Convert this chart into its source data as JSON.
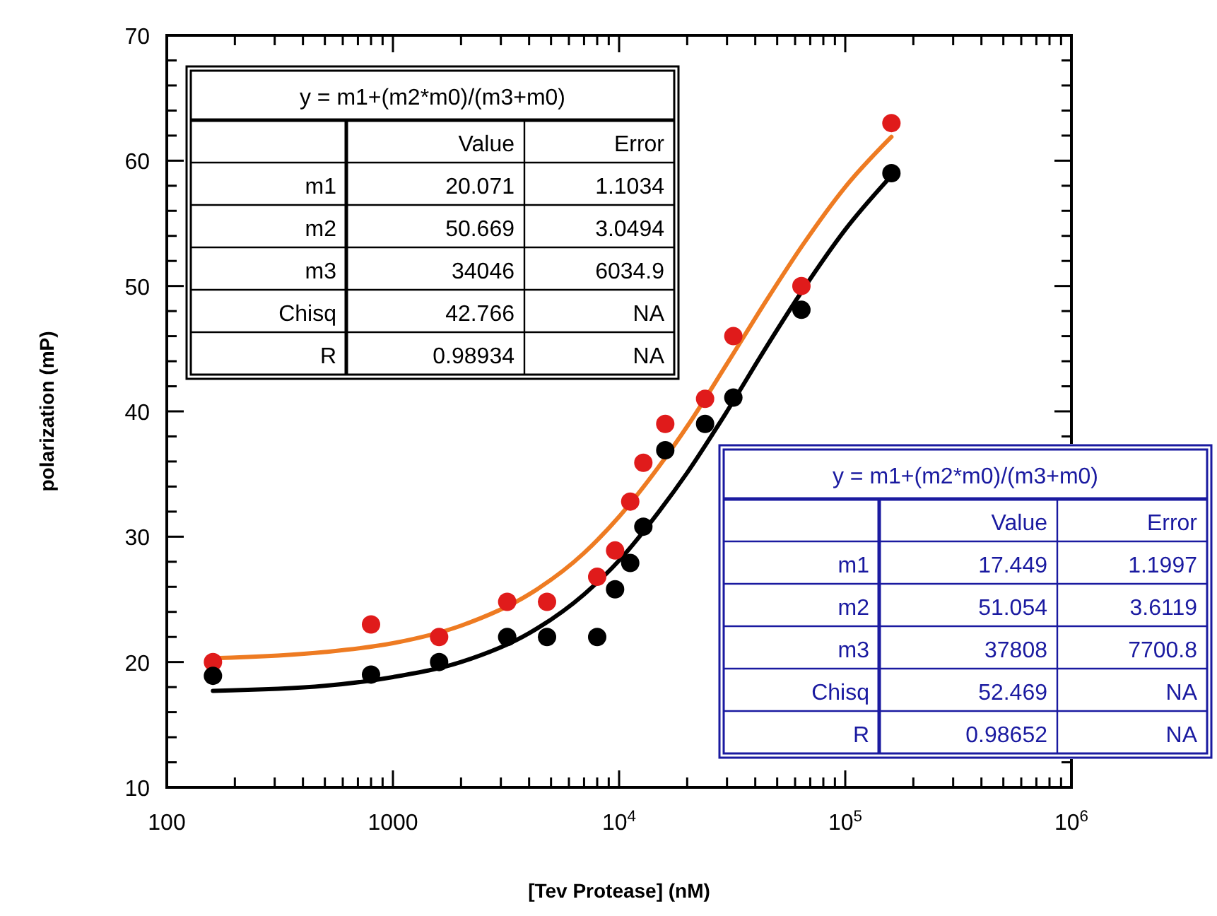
{
  "chart_data": {
    "type": "scatter",
    "xlabel": "[Tev Protease] (nM)",
    "ylabel": "polarization (mP)",
    "log": "x",
    "grid": false,
    "marker": "circle",
    "xlim": [
      100,
      1000000
    ],
    "xticks": [
      100,
      {
        "value": 200,
        "label": null
      },
      {
        "value": 300,
        "label": null
      },
      {
        "value": 400,
        "label": null
      },
      {
        "value": 500,
        "label": null
      },
      {
        "value": 600,
        "label": null
      },
      {
        "value": 700,
        "label": null
      },
      {
        "value": 800,
        "label": null
      },
      {
        "value": 900,
        "label": null
      },
      1000,
      {
        "value": 2000,
        "label": null
      },
      {
        "value": 3000,
        "label": null
      },
      {
        "value": 4000,
        "label": null
      },
      {
        "value": 5000,
        "label": null
      },
      {
        "value": 6000,
        "label": null
      },
      {
        "value": 7000,
        "label": null
      },
      {
        "value": 8000,
        "label": null
      },
      {
        "value": 9000,
        "label": null
      },
      {
        "value": 10000,
        "label": "10$^{4}$"
      },
      {
        "value": 20000,
        "label": null
      },
      {
        "value": 30000,
        "label": null
      },
      {
        "value": 40000,
        "label": null
      },
      {
        "value": 50000,
        "label": null
      },
      {
        "value": 60000,
        "label": null
      },
      {
        "value": 70000,
        "label": null
      },
      {
        "value": 80000,
        "label": null
      },
      {
        "value": 90000,
        "label": null
      },
      {
        "value": 100000,
        "label": "10$^{5}$"
      },
      {
        "value": 200000,
        "label": null
      },
      {
        "value": 300000,
        "label": null
      },
      {
        "value": 400000,
        "label": null
      },
      {
        "value": 500000,
        "label": null
      },
      {
        "value": 600000,
        "label": null
      },
      {
        "value": 700000,
        "label": null
      },
      {
        "value": 800000,
        "label": null
      },
      {
        "value": 900000,
        "label": null
      },
      {
        "value": 1000000,
        "label": "10$^{6}$"
      }
    ],
    "ylim": [
      10,
      70
    ],
    "yticks": [
      10,
      {
        "value": 12,
        "label": null
      },
      {
        "value": 14,
        "label": null
      },
      {
        "value": 16,
        "label": null
      },
      {
        "value": 18,
        "label": null
      },
      20,
      {
        "value": 22,
        "label": null
      },
      {
        "value": 24,
        "label": null
      },
      {
        "value": 26,
        "label": null
      },
      {
        "value": 28,
        "label": null
      },
      30,
      {
        "value": 32,
        "label": null
      },
      {
        "value": 34,
        "label": null
      },
      {
        "value": 36,
        "label": null
      },
      {
        "value": 38,
        "label": null
      },
      40,
      {
        "value": 42,
        "label": null
      },
      {
        "value": 44,
        "label": null
      },
      {
        "value": 46,
        "label": null
      },
      {
        "value": 48,
        "label": null
      },
      50,
      {
        "value": 52,
        "label": null
      },
      {
        "value": 54,
        "label": null
      },
      {
        "value": 56,
        "label": null
      },
      {
        "value": 58,
        "label": null
      },
      60,
      {
        "value": 62,
        "label": null
      },
      {
        "value": 64,
        "label": null
      },
      {
        "value": 66,
        "label": null
      },
      {
        "value": 68,
        "label": null
      },
      70
    ],
    "series": [
      {
        "type": "line",
        "marker": "none",
        "color": "#ee7b22",
        "x": [
          160,
          500,
          1000,
          2000,
          4000,
          7000,
          10000,
          15000,
          20000,
          30000,
          45000,
          65000,
          100000,
          160000
        ],
        "values": [
          20.3,
          20.8,
          21.5,
          22.9,
          25.4,
          28.7,
          31.6,
          35.6,
          38.8,
          43.8,
          48.9,
          53.3,
          57.9,
          61.9
        ]
      },
      {
        "type": "line",
        "marker": "none",
        "color": "#000000",
        "x": [
          160,
          500,
          1000,
          2000,
          4000,
          7000,
          10000,
          15000,
          20000,
          30000,
          45000,
          65000,
          100000,
          160000
        ],
        "values": [
          17.7,
          18.1,
          18.8,
          20,
          22.3,
          25.4,
          28.1,
          32,
          35.1,
          40,
          45.2,
          49.7,
          54.5,
          58.8
        ]
      },
      {
        "color": "#e01b1b",
        "x": [
          160,
          800,
          1600,
          3200,
          4800,
          8000,
          9600,
          11200,
          12800,
          16000,
          24000,
          32000,
          64000,
          160000
        ],
        "values": [
          20,
          23,
          22,
          24.8,
          24.8,
          26.8,
          28.9,
          32.8,
          35.9,
          39,
          41,
          46,
          50,
          63
        ]
      },
      {
        "color": "#000000",
        "x": [
          160,
          800,
          1600,
          3200,
          4800,
          8000,
          9600,
          11200,
          12800,
          16000,
          24000,
          32000,
          64000,
          160000
        ],
        "values": [
          18.9,
          19,
          20,
          22,
          22,
          22,
          25.8,
          27.9,
          30.8,
          36.9,
          39,
          41.1,
          48.1,
          59
        ]
      }
    ],
    "annotations": [
      "y = m1+(m2*m0)/(m3+m0)",
      "Value",
      "Error",
      "m1",
      "20.071",
      "1.1034",
      "m2",
      "50.669",
      "3.0494",
      "m3",
      "34046",
      "6034.9",
      "Chisq",
      "42.766",
      "NA",
      "R",
      "0.98934",
      "NA",
      "y = m1+(m2*m0)/(m3+m0)",
      "Value",
      "Error",
      "m1",
      "17.449",
      "1.1997",
      "m2",
      "51.054",
      "3.6119",
      "m3",
      "37808",
      "7700.8",
      "Chisq",
      "52.469",
      "NA",
      "R",
      "0.98652",
      "NA"
    ]
  }
}
